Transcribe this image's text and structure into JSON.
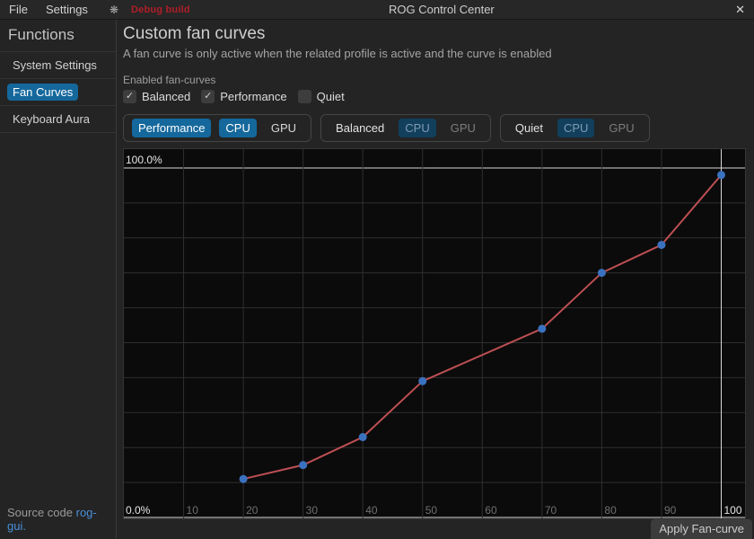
{
  "window": {
    "title": "ROG Control Center",
    "close_icon": "✕",
    "theme_icon": "❋",
    "menus": [
      {
        "label": "File"
      },
      {
        "label": "Settings"
      }
    ],
    "debug_badge": "Debug build"
  },
  "sidebar": {
    "header": "Functions",
    "items": [
      {
        "label": "System Settings",
        "active": false
      },
      {
        "label": "Fan Curves",
        "active": true
      },
      {
        "label": "Keyboard Aura",
        "active": false
      }
    ],
    "footer_text": "Source code",
    "footer_link": "rog-gui."
  },
  "main": {
    "title": "Custom fan curves",
    "subtitle": "A fan curve is only active when the related profile is active and the curve is enabled",
    "enabled_section_label": "Enabled fan-curves",
    "profile_checkboxes": [
      {
        "label": "Balanced",
        "checked": true
      },
      {
        "label": "Performance",
        "checked": true
      },
      {
        "label": "Quiet",
        "checked": false
      }
    ],
    "fan_curve_tabs": [
      {
        "profile": "Performance",
        "cpu_label": "CPU",
        "gpu_label": "GPU",
        "active": true,
        "selected_fan": "CPU"
      },
      {
        "profile": "Balanced",
        "cpu_label": "CPU",
        "gpu_label": "GPU",
        "active": false,
        "selected_fan": "CPU"
      },
      {
        "profile": "Quiet",
        "cpu_label": "CPU",
        "gpu_label": "GPU",
        "active": false,
        "selected_fan": "CPU"
      }
    ],
    "apply_button_label": "Apply Fan-curve"
  },
  "chart_data": {
    "type": "line",
    "title": "Performance CPU fan curve",
    "x": [
      20,
      30,
      40,
      50,
      70,
      80,
      90,
      100
    ],
    "y": [
      11,
      15,
      23,
      39,
      54,
      70,
      78,
      98
    ],
    "x_ticks": [
      10,
      20,
      30,
      40,
      50,
      60,
      70,
      80,
      90,
      100
    ],
    "y_axis_top_label": "100.0%",
    "y_axis_bottom_label": "0.0%",
    "xlabel": "",
    "ylabel": "",
    "xlim": [
      0,
      104
    ],
    "ylim": [
      0,
      105.5
    ],
    "grid": true,
    "highlighted_x": 100,
    "colors": {
      "line": "#bd4f53",
      "point": "#3b72c0",
      "grid": "#2f2f2f",
      "highlight_line": "#d8d8d8",
      "tick": "#6f6f6f",
      "highlight_tick": "#e6e6e6"
    }
  }
}
